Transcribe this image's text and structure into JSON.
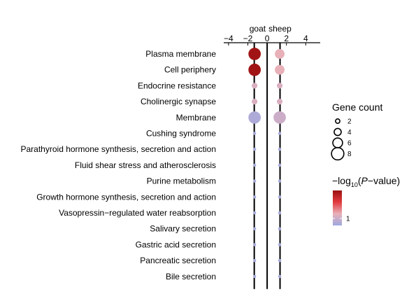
{
  "chart_data": {
    "type": "scatter",
    "columns": [
      "goat",
      "sheep"
    ],
    "categories": [
      "Plasma membrane",
      "Cell periphery",
      "Endocrine resistance",
      "Cholinergic synapse",
      "Membrane",
      "Cushing syndrome",
      "Parathyroid hormone synthesis, secretion and action",
      "Fluid shear stress and atherosclerosis",
      "Purine metabolism",
      "Growth hormone synthesis, secretion and action",
      "Vasopressin−regulated water reabsorption",
      "Salivary secretion",
      "Gastric acid secretion",
      "Pancreatic secretion",
      "Bile secretion"
    ],
    "x_ticks": [
      "−4",
      "−2",
      "0",
      "2",
      "4"
    ],
    "x_tick_values": [
      -4,
      -2,
      0,
      2,
      4
    ],
    "xlim": [
      -4.5,
      5.5
    ],
    "vlines": [
      -1.3,
      1.3
    ],
    "points": {
      "goat": {
        "x": -1.3,
        "gene_count": [
          8,
          8,
          3,
          3,
          8,
          1,
          1,
          1,
          1,
          1,
          1,
          1,
          1,
          1,
          1
        ],
        "neg_log10_p": [
          3.3,
          3.3,
          1.2,
          1.2,
          0.6,
          0.5,
          0.5,
          0.5,
          0.5,
          0.5,
          0.5,
          0.5,
          0.5,
          0.5,
          0.5
        ]
      },
      "sheep": {
        "x": 1.3,
        "gene_count": [
          6,
          6,
          3,
          3,
          8,
          1,
          1,
          1,
          1,
          1,
          1,
          1,
          1,
          1,
          1
        ],
        "neg_log10_p": [
          1.4,
          1.4,
          1.2,
          1.2,
          1.0,
          0.5,
          0.5,
          0.5,
          0.5,
          0.5,
          0.5,
          0.5,
          0.5,
          0.5,
          0.5
        ]
      }
    },
    "legend_size": {
      "title": "Gene count",
      "values": [
        2,
        4,
        6,
        8
      ],
      "labels": [
        "2",
        "4",
        "6",
        "8"
      ]
    },
    "legend_color": {
      "title_main": "−log",
      "title_sub": "10",
      "title_open": "(",
      "title_italic": "P",
      "title_rest": "−value)",
      "tick_label": "1",
      "tick_value": 1,
      "range": [
        0.4,
        3.4
      ],
      "colors": [
        "#9fa9e0",
        "#e8b0b8",
        "#e23a40",
        "#9a1010"
      ]
    }
  }
}
